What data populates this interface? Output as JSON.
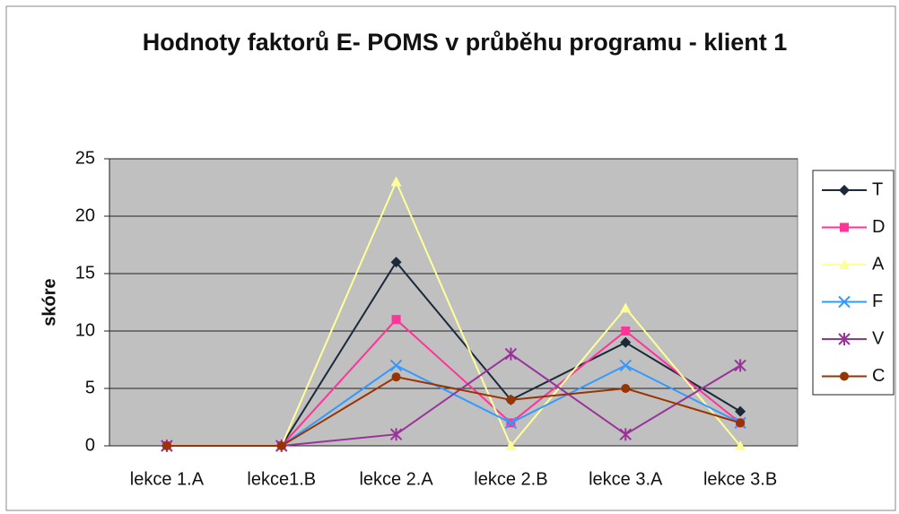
{
  "chart_data": {
    "type": "line",
    "title": "Hodnoty faktorů E- POMS v průběhu programu - klient 1",
    "y_label": "skóre",
    "categories": [
      "lekce 1.A",
      "lekce1.B",
      "lekce 2.A",
      "lekce 2.B",
      "lekce 3.A",
      "lekce 3.B"
    ],
    "series": [
      {
        "name": "T",
        "color": "#1a2a3a",
        "marker": "diamond",
        "values": [
          0,
          0,
          16,
          4,
          9,
          3
        ]
      },
      {
        "name": "D",
        "color": "#ff3399",
        "marker": "square",
        "values": [
          0,
          0,
          11,
          2,
          10,
          2
        ]
      },
      {
        "name": "A",
        "color": "#ffff99",
        "marker": "triangle",
        "values": [
          0,
          0,
          23,
          0,
          12,
          0
        ]
      },
      {
        "name": "F",
        "color": "#3399ff",
        "marker": "x",
        "values": [
          0,
          0,
          7,
          2,
          7,
          2
        ]
      },
      {
        "name": "V",
        "color": "#993399",
        "marker": "star",
        "values": [
          0,
          0,
          1,
          8,
          1,
          7
        ]
      },
      {
        "name": "C",
        "color": "#993300",
        "marker": "circle",
        "values": [
          0,
          0,
          6,
          4,
          5,
          2
        ]
      }
    ],
    "ylim": [
      0,
      25
    ],
    "yticks": [
      0,
      5,
      10,
      15,
      20,
      25
    ],
    "grid": true,
    "legend": "right"
  }
}
